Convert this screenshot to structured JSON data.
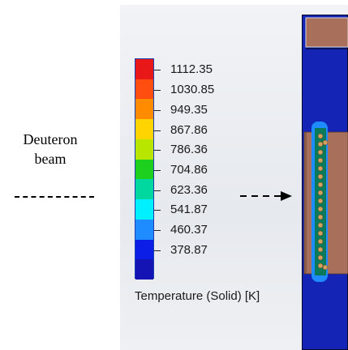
{
  "beam_label": {
    "line1": "Deuteron",
    "line2": "beam"
  },
  "legend": {
    "title": "Temperature (Solid) [K]",
    "values": [
      "1112.35",
      "1030.85",
      "949.35",
      "867.86",
      "786.36",
      "704.86",
      "623.36",
      "541.87",
      "460.37",
      "378.87"
    ],
    "colors": [
      "#e81818",
      "#ff4e10",
      "#ff8c00",
      "#ffd400",
      "#b8e600",
      "#1ed01e",
      "#00d8a0",
      "#00f0ff",
      "#1e8cff",
      "#0a1ee6",
      "#1414b4"
    ]
  },
  "colors": {
    "panel_bg": "#eceef2",
    "target_body": "#1424b4",
    "target_copper": "#a8705a",
    "target_beam_channel": "#1e8cff"
  }
}
